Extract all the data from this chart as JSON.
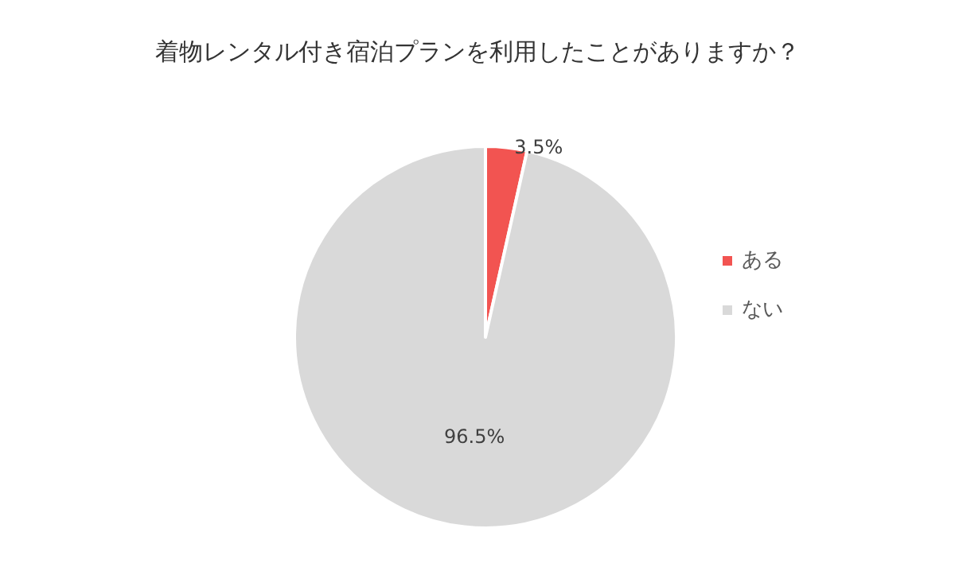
{
  "chart_data": {
    "type": "pie",
    "title": "着物レンタル付き宿泊プランを利用したことがありますか？",
    "categories": [
      "ある",
      "ない"
    ],
    "values": [
      3.5,
      96.5
    ],
    "colors": [
      "#f25451",
      "#d9d9d9"
    ],
    "value_labels": [
      "3.5%",
      "96.5%"
    ],
    "legend": "right"
  }
}
